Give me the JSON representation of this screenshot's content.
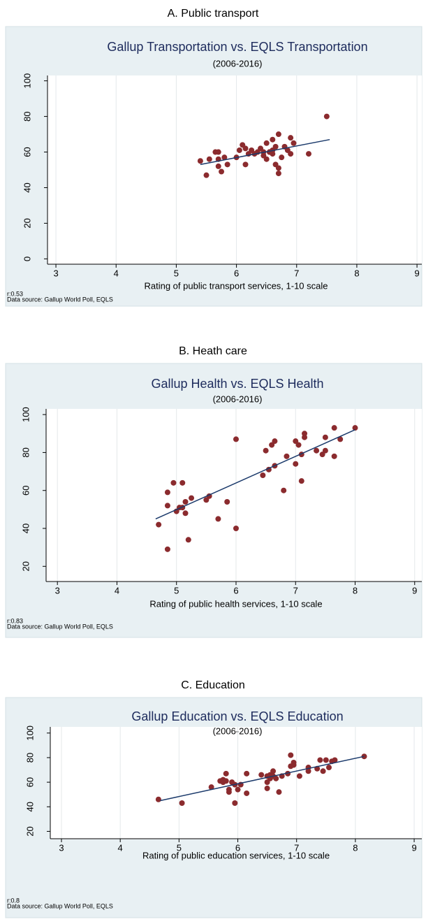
{
  "chart_data": [
    {
      "type": "scatter",
      "panel_title": "A. Public transport",
      "title": "Gallup Transportation vs. EQLS Transportation",
      "subtitle": "(2006-2016)",
      "x_label": "Rating of public transport services, 1-10 scale",
      "note": "r:0.53",
      "source": "Data source:  Gallup World Poll, EQLS",
      "color": "#8b2b2e",
      "fit_color": "#1b3a6b",
      "x": [
        5.4,
        5.5,
        5.55,
        5.65,
        5.7,
        5.7,
        5.7,
        5.75,
        5.8,
        5.85,
        6.0,
        6.05,
        6.1,
        6.15,
        6.15,
        6.2,
        6.25,
        6.3,
        6.35,
        6.4,
        6.45,
        6.5,
        6.5,
        6.55,
        6.55,
        6.6,
        6.6,
        6.6,
        6.65,
        6.65,
        6.7,
        6.7,
        6.7,
        6.75,
        6.8,
        6.85,
        6.9,
        6.9,
        6.95,
        7.2,
        7.5,
        6.45
      ],
      "values": [
        55,
        47,
        56,
        60,
        60,
        56,
        52,
        49,
        57,
        53,
        57,
        61,
        64,
        62,
        53,
        59,
        61,
        59,
        60,
        62,
        60,
        65,
        56,
        60,
        60,
        61,
        59,
        67,
        63,
        53,
        70,
        51,
        48,
        57,
        63,
        61,
        59,
        68,
        65,
        59,
        80,
        58
      ],
      "fit": {
        "x": [
          5.4,
          7.55
        ],
        "values": [
          53,
          67
        ]
      },
      "xlim": [
        2.86,
        9.08
      ],
      "ylim": [
        -3,
        103
      ],
      "xticks": [
        3,
        4,
        5,
        6,
        7,
        8,
        9
      ],
      "yticks": [
        0,
        20,
        40,
        60,
        80,
        100
      ]
    },
    {
      "type": "scatter",
      "panel_title": "B. Heath care",
      "title": "Gallup Health vs. EQLS Health",
      "subtitle": "(2006-2016)",
      "x_label": "Rating of public health services, 1-10 scale",
      "note": "r:0.83",
      "source": "Data source:  Gallup World Poll, EQLS",
      "color": "#8b2b2e",
      "fit_color": "#1b3a6b",
      "x": [
        4.7,
        4.85,
        4.85,
        4.85,
        4.95,
        5.0,
        5.05,
        5.1,
        5.1,
        5.15,
        5.15,
        5.2,
        5.25,
        5.5,
        5.55,
        5.7,
        5.85,
        6.0,
        6.0,
        6.45,
        6.5,
        6.55,
        6.6,
        6.65,
        6.65,
        6.8,
        6.85,
        7.0,
        7.0,
        7.05,
        7.1,
        7.1,
        7.15,
        7.15,
        7.35,
        7.45,
        7.5,
        7.5,
        7.65,
        7.65,
        7.75,
        8.0
      ],
      "values": [
        42,
        59,
        52,
        29,
        64,
        49,
        51,
        51,
        64,
        54,
        48,
        34,
        56,
        55,
        57,
        45,
        54,
        87,
        40,
        68,
        81,
        71,
        84,
        86,
        73,
        60,
        78,
        86,
        74,
        84,
        79,
        65,
        90,
        88,
        81,
        79,
        88,
        81,
        93,
        78,
        87,
        93
      ],
      "fit": {
        "x": [
          4.65,
          8.0
        ],
        "values": [
          45,
          92
        ]
      },
      "xlim": [
        2.81,
        9.12
      ],
      "ylim": [
        12,
        103
      ],
      "xticks": [
        3,
        4,
        5,
        6,
        7,
        8,
        9
      ],
      "yticks": [
        20,
        40,
        60,
        80,
        100
      ]
    },
    {
      "type": "scatter",
      "panel_title": "C. Education",
      "title": "Gallup Education vs. EQLS Education",
      "subtitle": "(2006-2016)",
      "x_label": "Rating of public education services, 1-10 scale",
      "note": "r:0.8",
      "source": "Data source:  Gallup World Poll, EQLS",
      "color": "#8b2b2e",
      "fit_color": "#1b3a6b",
      "x": [
        4.65,
        5.05,
        5.55,
        5.7,
        5.75,
        5.75,
        5.8,
        5.8,
        5.85,
        5.85,
        5.9,
        5.95,
        5.95,
        6.0,
        6.05,
        6.15,
        6.15,
        6.4,
        6.5,
        6.5,
        6.5,
        6.55,
        6.55,
        6.6,
        6.6,
        6.65,
        6.7,
        6.75,
        6.85,
        6.9,
        6.9,
        6.95,
        6.95,
        7.05,
        7.2,
        7.2,
        7.35,
        7.4,
        7.45,
        7.5,
        7.55,
        7.6,
        7.65,
        8.15
      ],
      "values": [
        46,
        43,
        56,
        61,
        60,
        62,
        67,
        61,
        54,
        52,
        60,
        58,
        43,
        54,
        58,
        51,
        67,
        66,
        65,
        60,
        55,
        63,
        66,
        69,
        65,
        63,
        52,
        65,
        67,
        73,
        82,
        74,
        76,
        65,
        69,
        72,
        71,
        78,
        69,
        78,
        72,
        77,
        78,
        81
      ],
      "fit": {
        "x": [
          4.68,
          8.15
        ],
        "values": [
          45,
          81
        ]
      },
      "xlim": [
        2.81,
        9.13
      ],
      "ylim": [
        14,
        105
      ],
      "xticks": [
        3,
        4,
        5,
        6,
        7,
        8,
        9
      ],
      "yticks": [
        20,
        40,
        60,
        80,
        100
      ]
    }
  ]
}
